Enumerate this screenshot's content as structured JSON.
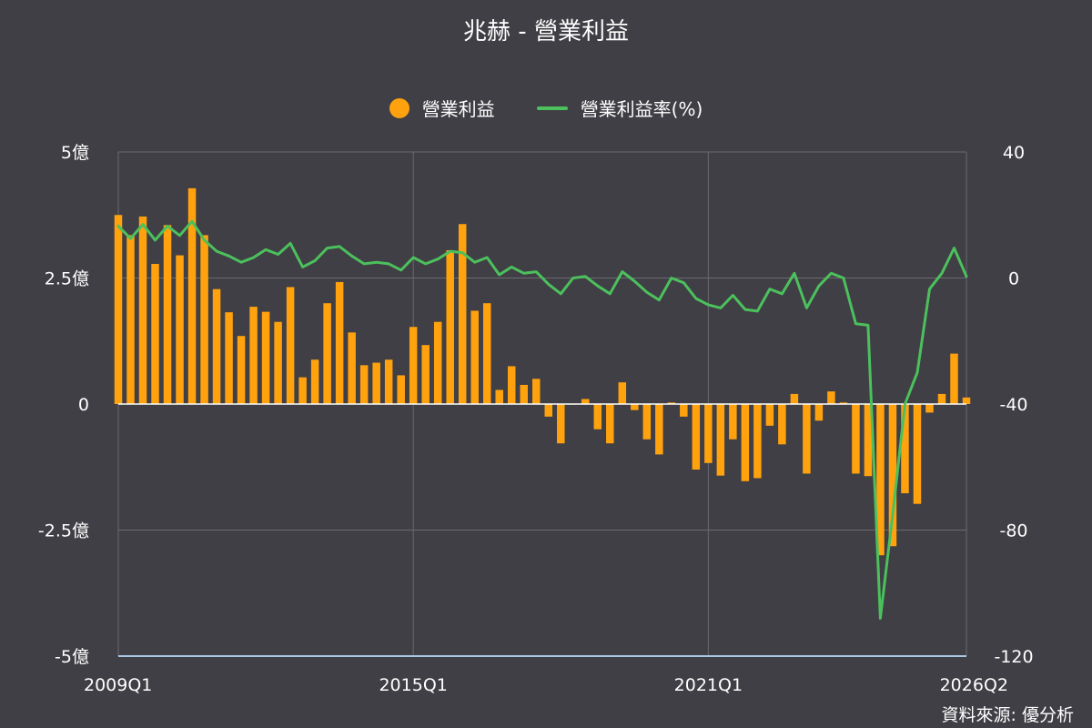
{
  "title": "兆赫 - 營業利益",
  "legend": {
    "bar_label": "營業利益",
    "line_label": "營業利益率(%)"
  },
  "source": "資料來源: 優分析",
  "colors": {
    "background": "#3f3f45",
    "bar": "#ffa20e",
    "line": "#4cc05c",
    "grid": "#6a6a70",
    "zero_line": "#ffffff",
    "bottom_axis": "#a9c8e6"
  },
  "chart_data": {
    "type": "bar+line",
    "title": "兆赫 - 營業利益",
    "x_ticks": [
      "2009Q1",
      "2015Q1",
      "2021Q1",
      "2026Q2"
    ],
    "categories": [
      "2009Q1",
      "2009Q2",
      "2009Q3",
      "2009Q4",
      "2010Q1",
      "2010Q2",
      "2010Q3",
      "2010Q4",
      "2011Q1",
      "2011Q2",
      "2011Q3",
      "2011Q4",
      "2012Q1",
      "2012Q2",
      "2012Q3",
      "2012Q4",
      "2013Q1",
      "2013Q2",
      "2013Q3",
      "2013Q4",
      "2014Q1",
      "2014Q2",
      "2014Q3",
      "2014Q4",
      "2015Q1",
      "2015Q2",
      "2015Q3",
      "2015Q4",
      "2016Q1",
      "2016Q2",
      "2016Q3",
      "2016Q4",
      "2017Q1",
      "2017Q2",
      "2017Q3",
      "2017Q4",
      "2018Q1",
      "2018Q2",
      "2018Q3",
      "2018Q4",
      "2019Q1",
      "2019Q2",
      "2019Q3",
      "2019Q4",
      "2020Q1",
      "2020Q2",
      "2020Q3",
      "2020Q4",
      "2021Q1",
      "2021Q2",
      "2021Q3",
      "2021Q4",
      "2022Q1",
      "2022Q2",
      "2022Q3",
      "2022Q4",
      "2023Q1",
      "2023Q2",
      "2023Q3",
      "2023Q4",
      "2024Q1",
      "2024Q2",
      "2024Q3",
      "2024Q4",
      "2025Q1",
      "2025Q2",
      "2025Q3",
      "2025Q4",
      "2026Q1",
      "2026Q2"
    ],
    "left_axis": {
      "ticks": [
        "5億",
        "2.5億",
        "0",
        "-2.5億",
        "-5億"
      ],
      "ylim": [
        -5,
        5
      ],
      "unit": "億"
    },
    "right_axis": {
      "ticks": [
        "40",
        "0",
        "-40",
        "-80",
        "-120"
      ],
      "ylim": [
        -120,
        40
      ]
    },
    "series": [
      {
        "name": "營業利益",
        "kind": "bar",
        "axis": "left",
        "values": [
          3.75,
          3.35,
          3.72,
          2.78,
          3.55,
          2.95,
          4.28,
          3.35,
          2.28,
          1.82,
          1.35,
          1.93,
          1.83,
          1.63,
          2.32,
          0.53,
          0.88,
          2.0,
          2.42,
          1.42,
          0.77,
          0.82,
          0.88,
          0.57,
          1.53,
          1.17,
          1.63,
          3.05,
          3.57,
          1.85,
          2.0,
          0.28,
          0.75,
          0.38,
          0.5,
          -0.25,
          -0.78,
          0.0,
          0.1,
          -0.5,
          -0.78,
          0.43,
          -0.12,
          -0.7,
          -1.0,
          0.03,
          -0.25,
          -1.3,
          -1.17,
          -1.42,
          -0.7,
          -1.53,
          -1.47,
          -0.43,
          -0.8,
          0.2,
          -1.38,
          -0.33,
          0.25,
          0.03,
          -1.38,
          -1.43,
          -3.0,
          -2.82,
          -1.77,
          -1.98,
          -0.17,
          0.2,
          1.0,
          0.13
        ]
      },
      {
        "name": "營業利益率(%)",
        "kind": "line",
        "axis": "right",
        "values": [
          16.5,
          12.5,
          17.0,
          12.0,
          16.5,
          13.5,
          18.0,
          12.0,
          8.5,
          7.0,
          5.0,
          6.5,
          9.0,
          7.5,
          11.0,
          3.5,
          5.5,
          9.5,
          10.0,
          7.0,
          4.5,
          5.0,
          4.5,
          2.5,
          6.5,
          4.5,
          6.0,
          8.5,
          8.0,
          5.0,
          6.5,
          1.0,
          3.5,
          1.5,
          2.0,
          -2.0,
          -5.0,
          0.0,
          0.5,
          -2.5,
          -5.0,
          2.0,
          -1.0,
          -4.5,
          -7.0,
          0.0,
          -1.5,
          -6.5,
          -8.5,
          -9.5,
          -5.5,
          -10.0,
          -10.5,
          -3.5,
          -5.0,
          1.5,
          -9.5,
          -2.5,
          1.5,
          0.0,
          -14.5,
          -15.0,
          -108.0,
          -75.0,
          -40.0,
          -30.0,
          -3.5,
          1.5,
          9.5,
          0.5
        ]
      }
    ],
    "grid": true,
    "legend_position": "top-center"
  }
}
